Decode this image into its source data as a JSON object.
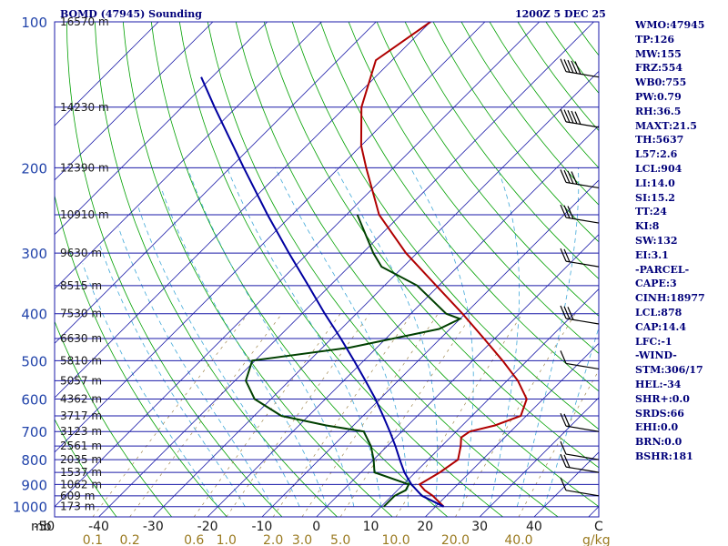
{
  "header": {
    "station": "BOMD (47945) Sounding",
    "time": "1200Z  5 DEC 25"
  },
  "indices": [
    "WMO:47945",
    "TP:126",
    "MW:155",
    "FRZ:554",
    "WB0:755",
    "PW:0.79",
    "RH:36.5",
    "MAXT:21.5",
    "TH:5637",
    "L57:2.6",
    "LCL:904",
    "LI:14.0",
    "SI:15.2",
    "TT:24",
    "KI:8",
    "SW:132",
    "EI:3.1",
    "-PARCEL-",
    "CAPE:3",
    "CINH:18977",
    "LCL:878",
    "CAP:14.4",
    "LFC:-1",
    "-WIND-",
    "STM:306/17",
    "HEL:-34",
    "SHR+:0.0",
    "SRDS:66",
    "EHI:0.0",
    "BRN:0.0",
    "BSHR:181"
  ],
  "chart_data": {
    "type": "skew-t",
    "y_axis_unit": "mb",
    "x_axis_unit": "C",
    "mixing_ratio_unit": "g/kg",
    "pressure_ticks": [
      "100",
      "200",
      "300",
      "400",
      "500",
      "600",
      "700",
      "800",
      "900",
      "1000"
    ],
    "temperature_ticks": [
      "-50",
      "-40",
      "-30",
      "-20",
      "-10",
      "0",
      "10",
      "20",
      "30",
      "40"
    ],
    "mixing_ratio_ticks": [
      "0.1",
      "0.2",
      "0.6",
      "1.0",
      "2.0",
      "3.0",
      "5.0",
      "10.0",
      "20.0",
      "40.0"
    ],
    "height_labels": [
      {
        "p": 100,
        "label": "16570 m"
      },
      {
        "p": 150,
        "label": "14230 m"
      },
      {
        "p": 200,
        "label": "12390 m"
      },
      {
        "p": 250,
        "label": "10910 m"
      },
      {
        "p": 300,
        "label": "9630 m"
      },
      {
        "p": 350,
        "label": "8515 m"
      },
      {
        "p": 400,
        "label": "7530 m"
      },
      {
        "p": 450,
        "label": "6630 m"
      },
      {
        "p": 500,
        "label": "5810 m"
      },
      {
        "p": 550,
        "label": "5057 m"
      },
      {
        "p": 600,
        "label": "4362 m"
      },
      {
        "p": 650,
        "label": "3717 m"
      },
      {
        "p": 700,
        "label": "3123 m"
      },
      {
        "p": 750,
        "label": "2561 m"
      },
      {
        "p": 800,
        "label": "2035 m"
      },
      {
        "p": 850,
        "label": "1537 m"
      },
      {
        "p": 900,
        "label": "1062 m"
      },
      {
        "p": 950,
        "label": "609 m"
      },
      {
        "p": 1000,
        "label": "173 m"
      }
    ],
    "series": [
      {
        "kind": "temperature",
        "color": "#b00000",
        "points": [
          [
            1000,
            21.5
          ],
          [
            950,
            17.5
          ],
          [
            925,
            15.0
          ],
          [
            900,
            13.0
          ],
          [
            850,
            14.5
          ],
          [
            800,
            15.5
          ],
          [
            750,
            13.5
          ],
          [
            720,
            12.0
          ],
          [
            700,
            12.5
          ],
          [
            680,
            16.0
          ],
          [
            650,
            19.0
          ],
          [
            600,
            17.0
          ],
          [
            550,
            12.0
          ],
          [
            500,
            5.5
          ],
          [
            450,
            -2.0
          ],
          [
            400,
            -10.5
          ],
          [
            350,
            -20.5
          ],
          [
            300,
            -32.0
          ],
          [
            250,
            -44.0
          ],
          [
            200,
            -55.0
          ],
          [
            180,
            -60.0
          ],
          [
            150,
            -67.0
          ],
          [
            120,
            -73.0
          ],
          [
            100,
            -70.0
          ]
        ]
      },
      {
        "kind": "dewpoint",
        "color": "#004000",
        "points": [
          [
            1000,
            10.5
          ],
          [
            950,
            10.5
          ],
          [
            925,
            11.5
          ],
          [
            900,
            11.0
          ],
          [
            850,
            2.5
          ],
          [
            800,
            0.0
          ],
          [
            750,
            -3.0
          ],
          [
            700,
            -7.0
          ],
          [
            680,
            -15.0
          ],
          [
            650,
            -25.0
          ],
          [
            600,
            -33.0
          ],
          [
            550,
            -38.0
          ],
          [
            500,
            -40.5
          ],
          [
            470,
            -25.0
          ],
          [
            430,
            -12.0
          ],
          [
            410,
            -10.0
          ],
          [
            400,
            -13.5
          ],
          [
            350,
            -24.0
          ],
          [
            320,
            -34.0
          ],
          [
            300,
            -38.0
          ],
          [
            250,
            -48.0
          ]
        ]
      },
      {
        "kind": "parcel",
        "color": "#0000a0",
        "points": [
          [
            1000,
            21.5
          ],
          [
            950,
            15.5
          ],
          [
            900,
            11.5
          ],
          [
            850,
            8.0
          ],
          [
            800,
            4.8
          ],
          [
            750,
            1.5
          ],
          [
            700,
            -2.2
          ],
          [
            650,
            -6.3
          ],
          [
            600,
            -10.8
          ],
          [
            550,
            -16.0
          ],
          [
            500,
            -21.8
          ],
          [
            450,
            -28.3
          ],
          [
            400,
            -35.8
          ],
          [
            350,
            -44.0
          ],
          [
            300,
            -53.5
          ],
          [
            250,
            -64.5
          ],
          [
            200,
            -77.5
          ],
          [
            150,
            -94.0
          ],
          [
            130,
            -102.0
          ]
        ]
      }
    ],
    "wind_barbs": [
      {
        "p": 130,
        "speed": 45
      },
      {
        "p": 165,
        "speed": 45
      },
      {
        "p": 220,
        "speed": 35
      },
      {
        "p": 260,
        "speed": 30
      },
      {
        "p": 320,
        "speed": 20
      },
      {
        "p": 420,
        "speed": 25
      },
      {
        "p": 520,
        "speed": 10
      },
      {
        "p": 700,
        "speed": 15
      },
      {
        "p": 800,
        "speed": 10
      },
      {
        "p": 850,
        "speed": 20
      },
      {
        "p": 950,
        "speed": 10
      }
    ]
  }
}
